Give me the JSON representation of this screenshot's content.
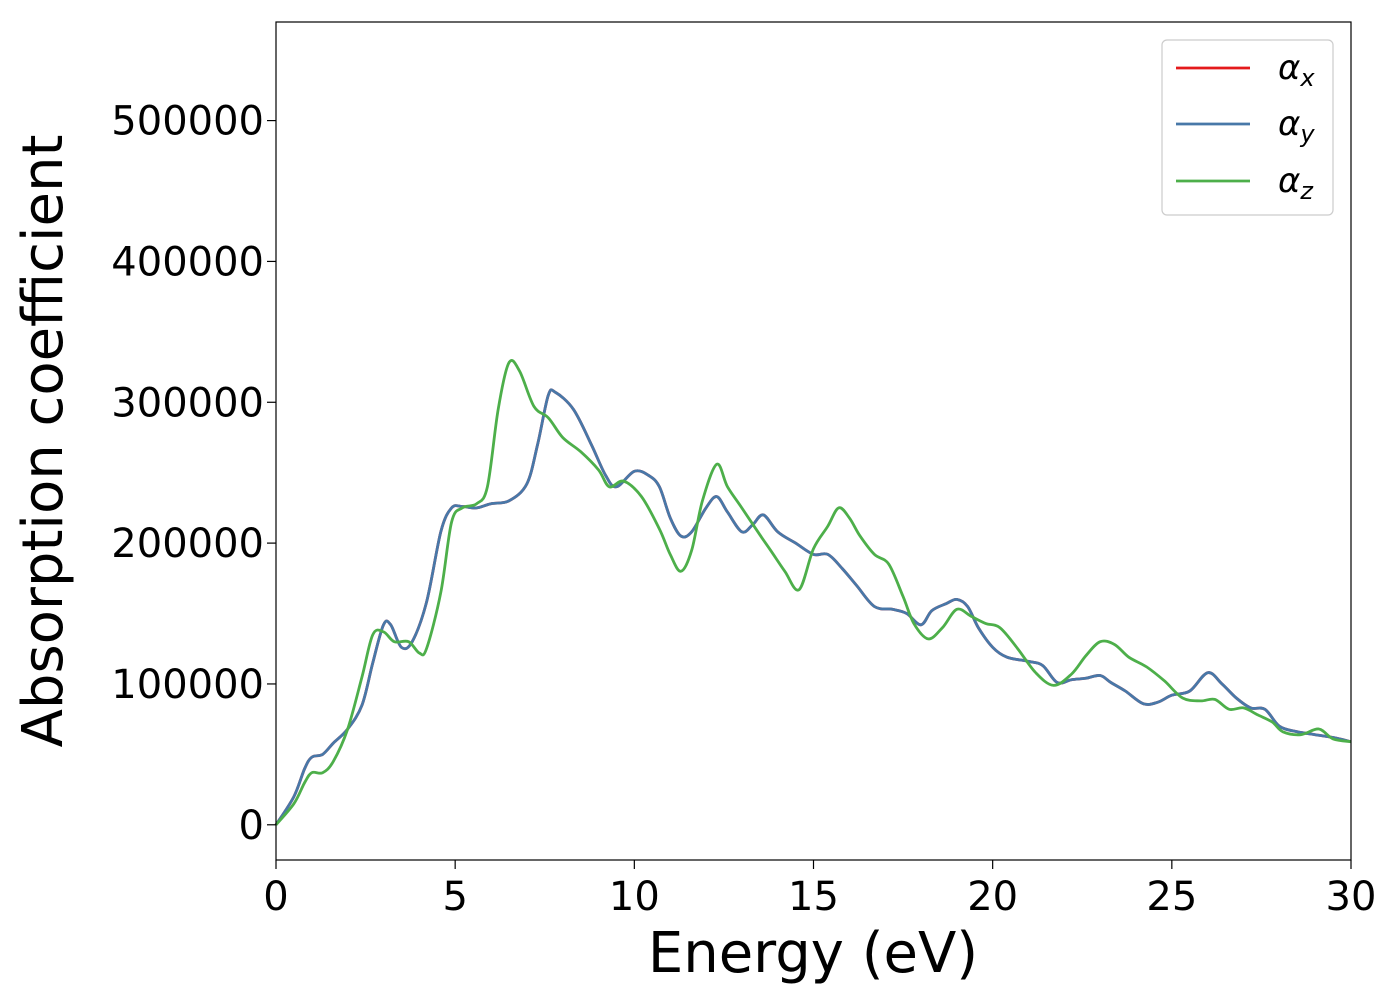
{
  "chart_data": {
    "type": "line",
    "title": "",
    "xlabel": "Energy (eV)",
    "ylabel": "Absorption coefficient",
    "xlim": [
      0,
      30
    ],
    "ylim": [
      -25000,
      570000
    ],
    "xticks": [
      0,
      5,
      10,
      15,
      20,
      25,
      30
    ],
    "yticks": [
      0,
      100000,
      200000,
      300000,
      400000,
      500000
    ],
    "grid": false,
    "legend_position": "top-right",
    "series": [
      {
        "name": "αx",
        "legend_symbol": "α",
        "legend_subscript": "x",
        "color": "#e41a1c",
        "points": [
          [
            0,
            0
          ],
          [
            0.5,
            20000
          ],
          [
            0.8,
            40000
          ],
          [
            1.0,
            48000
          ],
          [
            1.3,
            50000
          ],
          [
            1.6,
            58000
          ],
          [
            2.0,
            68000
          ],
          [
            2.4,
            85000
          ],
          [
            2.7,
            115000
          ],
          [
            3.0,
            142000
          ],
          [
            3.2,
            142000
          ],
          [
            3.5,
            126000
          ],
          [
            3.8,
            130000
          ],
          [
            4.2,
            158000
          ],
          [
            4.6,
            208000
          ],
          [
            4.9,
            225000
          ],
          [
            5.2,
            226000
          ],
          [
            5.6,
            225000
          ],
          [
            6.0,
            228000
          ],
          [
            6.5,
            230000
          ],
          [
            7.0,
            242000
          ],
          [
            7.3,
            270000
          ],
          [
            7.6,
            305000
          ],
          [
            7.8,
            307000
          ],
          [
            8.3,
            295000
          ],
          [
            8.8,
            270000
          ],
          [
            9.2,
            248000
          ],
          [
            9.5,
            240000
          ],
          [
            10.0,
            251000
          ],
          [
            10.4,
            248000
          ],
          [
            10.7,
            240000
          ],
          [
            11.0,
            218000
          ],
          [
            11.3,
            205000
          ],
          [
            11.6,
            208000
          ],
          [
            12.0,
            225000
          ],
          [
            12.3,
            233000
          ],
          [
            12.6,
            222000
          ],
          [
            13.0,
            208000
          ],
          [
            13.3,
            213000
          ],
          [
            13.6,
            220000
          ],
          [
            14.0,
            208000
          ],
          [
            14.5,
            200000
          ],
          [
            15.0,
            192000
          ],
          [
            15.4,
            192000
          ],
          [
            15.8,
            182000
          ],
          [
            16.2,
            170000
          ],
          [
            16.7,
            155000
          ],
          [
            17.2,
            153000
          ],
          [
            17.6,
            150000
          ],
          [
            18.0,
            142000
          ],
          [
            18.3,
            152000
          ],
          [
            18.7,
            157000
          ],
          [
            19.0,
            160000
          ],
          [
            19.3,
            155000
          ],
          [
            19.6,
            140000
          ],
          [
            20.0,
            126000
          ],
          [
            20.4,
            119000
          ],
          [
            21.0,
            116000
          ],
          [
            21.4,
            113000
          ],
          [
            21.8,
            101000
          ],
          [
            22.2,
            103000
          ],
          [
            22.6,
            104000
          ],
          [
            23.0,
            106000
          ],
          [
            23.3,
            101000
          ],
          [
            23.7,
            95000
          ],
          [
            24.2,
            86000
          ],
          [
            24.6,
            87000
          ],
          [
            25.0,
            92000
          ],
          [
            25.5,
            95000
          ],
          [
            26.0,
            108000
          ],
          [
            26.4,
            100000
          ],
          [
            26.8,
            90000
          ],
          [
            27.2,
            83000
          ],
          [
            27.6,
            82000
          ],
          [
            28.0,
            70000
          ],
          [
            28.5,
            66000
          ],
          [
            29.0,
            64000
          ],
          [
            29.5,
            62000
          ],
          [
            30.0,
            59000
          ]
        ]
      },
      {
        "name": "αy",
        "legend_symbol": "α",
        "legend_subscript": "y",
        "color": "#4878a8",
        "points": [
          [
            0,
            0
          ],
          [
            0.5,
            20000
          ],
          [
            0.8,
            40000
          ],
          [
            1.0,
            48000
          ],
          [
            1.3,
            50000
          ],
          [
            1.6,
            58000
          ],
          [
            2.0,
            68000
          ],
          [
            2.4,
            85000
          ],
          [
            2.7,
            115000
          ],
          [
            3.0,
            142000
          ],
          [
            3.2,
            142000
          ],
          [
            3.5,
            126000
          ],
          [
            3.8,
            130000
          ],
          [
            4.2,
            158000
          ],
          [
            4.6,
            208000
          ],
          [
            4.9,
            225000
          ],
          [
            5.2,
            226000
          ],
          [
            5.6,
            225000
          ],
          [
            6.0,
            228000
          ],
          [
            6.5,
            230000
          ],
          [
            7.0,
            242000
          ],
          [
            7.3,
            270000
          ],
          [
            7.6,
            305000
          ],
          [
            7.8,
            307000
          ],
          [
            8.3,
            295000
          ],
          [
            8.8,
            270000
          ],
          [
            9.2,
            248000
          ],
          [
            9.5,
            240000
          ],
          [
            10.0,
            251000
          ],
          [
            10.4,
            248000
          ],
          [
            10.7,
            240000
          ],
          [
            11.0,
            218000
          ],
          [
            11.3,
            205000
          ],
          [
            11.6,
            208000
          ],
          [
            12.0,
            225000
          ],
          [
            12.3,
            233000
          ],
          [
            12.6,
            222000
          ],
          [
            13.0,
            208000
          ],
          [
            13.3,
            213000
          ],
          [
            13.6,
            220000
          ],
          [
            14.0,
            208000
          ],
          [
            14.5,
            200000
          ],
          [
            15.0,
            192000
          ],
          [
            15.4,
            192000
          ],
          [
            15.8,
            182000
          ],
          [
            16.2,
            170000
          ],
          [
            16.7,
            155000
          ],
          [
            17.2,
            153000
          ],
          [
            17.6,
            150000
          ],
          [
            18.0,
            142000
          ],
          [
            18.3,
            152000
          ],
          [
            18.7,
            157000
          ],
          [
            19.0,
            160000
          ],
          [
            19.3,
            155000
          ],
          [
            19.6,
            140000
          ],
          [
            20.0,
            126000
          ],
          [
            20.4,
            119000
          ],
          [
            21.0,
            116000
          ],
          [
            21.4,
            113000
          ],
          [
            21.8,
            101000
          ],
          [
            22.2,
            103000
          ],
          [
            22.6,
            104000
          ],
          [
            23.0,
            106000
          ],
          [
            23.3,
            101000
          ],
          [
            23.7,
            95000
          ],
          [
            24.2,
            86000
          ],
          [
            24.6,
            87000
          ],
          [
            25.0,
            92000
          ],
          [
            25.5,
            95000
          ],
          [
            26.0,
            108000
          ],
          [
            26.4,
            100000
          ],
          [
            26.8,
            90000
          ],
          [
            27.2,
            83000
          ],
          [
            27.6,
            82000
          ],
          [
            28.0,
            70000
          ],
          [
            28.5,
            66000
          ],
          [
            29.0,
            64000
          ],
          [
            29.5,
            62000
          ],
          [
            30.0,
            59000
          ]
        ]
      },
      {
        "name": "αz",
        "legend_symbol": "α",
        "legend_subscript": "z",
        "color": "#4daf4a",
        "points": [
          [
            0,
            0
          ],
          [
            0.5,
            15000
          ],
          [
            0.8,
            30000
          ],
          [
            1.0,
            37000
          ],
          [
            1.3,
            37000
          ],
          [
            1.6,
            45000
          ],
          [
            2.0,
            68000
          ],
          [
            2.4,
            105000
          ],
          [
            2.7,
            135000
          ],
          [
            3.0,
            137000
          ],
          [
            3.3,
            130000
          ],
          [
            3.7,
            130000
          ],
          [
            4.0,
            122000
          ],
          [
            4.2,
            125000
          ],
          [
            4.6,
            165000
          ],
          [
            4.9,
            215000
          ],
          [
            5.2,
            225000
          ],
          [
            5.6,
            228000
          ],
          [
            5.9,
            240000
          ],
          [
            6.2,
            295000
          ],
          [
            6.5,
            328000
          ],
          [
            6.8,
            322000
          ],
          [
            7.2,
            297000
          ],
          [
            7.6,
            289000
          ],
          [
            8.0,
            275000
          ],
          [
            8.5,
            265000
          ],
          [
            9.0,
            252000
          ],
          [
            9.3,
            240000
          ],
          [
            9.7,
            244000
          ],
          [
            10.2,
            233000
          ],
          [
            10.7,
            210000
          ],
          [
            11.0,
            192000
          ],
          [
            11.3,
            180000
          ],
          [
            11.6,
            195000
          ],
          [
            11.9,
            230000
          ],
          [
            12.3,
            256000
          ],
          [
            12.6,
            240000
          ],
          [
            13.0,
            225000
          ],
          [
            13.5,
            206000
          ],
          [
            13.8,
            195000
          ],
          [
            14.2,
            180000
          ],
          [
            14.6,
            167000
          ],
          [
            15.0,
            196000
          ],
          [
            15.4,
            212000
          ],
          [
            15.7,
            225000
          ],
          [
            16.0,
            218000
          ],
          [
            16.3,
            205000
          ],
          [
            16.7,
            192000
          ],
          [
            17.1,
            185000
          ],
          [
            17.5,
            162000
          ],
          [
            17.8,
            143000
          ],
          [
            18.2,
            132000
          ],
          [
            18.6,
            140000
          ],
          [
            19.0,
            153000
          ],
          [
            19.4,
            148000
          ],
          [
            19.8,
            143000
          ],
          [
            20.2,
            140000
          ],
          [
            20.7,
            125000
          ],
          [
            21.2,
            108000
          ],
          [
            21.7,
            99000
          ],
          [
            22.2,
            107000
          ],
          [
            22.6,
            120000
          ],
          [
            23.0,
            130000
          ],
          [
            23.4,
            128000
          ],
          [
            23.8,
            119000
          ],
          [
            24.3,
            112000
          ],
          [
            24.8,
            102000
          ],
          [
            25.3,
            90000
          ],
          [
            25.8,
            88000
          ],
          [
            26.2,
            89000
          ],
          [
            26.6,
            82000
          ],
          [
            27.0,
            83000
          ],
          [
            27.4,
            78000
          ],
          [
            27.8,
            73000
          ],
          [
            28.1,
            66000
          ],
          [
            28.6,
            64000
          ],
          [
            29.1,
            68000
          ],
          [
            29.5,
            61000
          ],
          [
            30.0,
            59000
          ]
        ]
      }
    ]
  }
}
